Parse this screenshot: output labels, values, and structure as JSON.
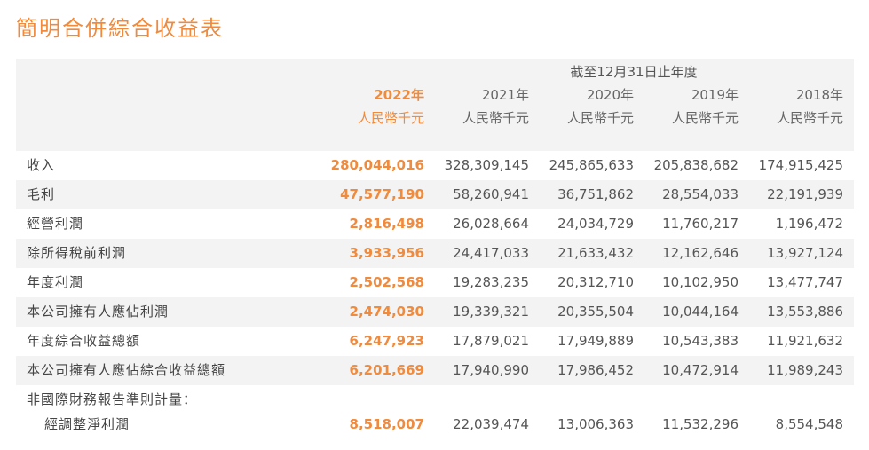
{
  "title": "簡明合併綜合收益表",
  "period_header": "截至12月31日止年度",
  "columns": [
    {
      "year": "2022年",
      "unit": "人民幣千元"
    },
    {
      "year": "2021年",
      "unit": "人民幣千元"
    },
    {
      "year": "2020年",
      "unit": "人民幣千元"
    },
    {
      "year": "2019年",
      "unit": "人民幣千元"
    },
    {
      "year": "2018年",
      "unit": "人民幣千元"
    }
  ],
  "rows": [
    {
      "label": "收入",
      "values": [
        "280,044,016",
        "328,309,145",
        "245,865,633",
        "205,838,682",
        "174,915,425"
      ]
    },
    {
      "label": "毛利",
      "values": [
        "47,577,190",
        "58,260,941",
        "36,751,862",
        "28,554,033",
        "22,191,939"
      ]
    },
    {
      "label": "經營利潤",
      "values": [
        "2,816,498",
        "26,028,664",
        "24,034,729",
        "11,760,217",
        "1,196,472"
      ]
    },
    {
      "label": "除所得稅前利潤",
      "values": [
        "3,933,956",
        "24,417,033",
        "21,633,432",
        "12,162,646",
        "13,927,124"
      ]
    },
    {
      "label": "年度利潤",
      "values": [
        "2,502,568",
        "19,283,235",
        "20,312,710",
        "10,102,950",
        "13,477,747"
      ]
    },
    {
      "label": "本公司擁有人應佔利潤",
      "values": [
        "2,474,030",
        "19,339,321",
        "20,355,504",
        "10,044,164",
        "13,553,886"
      ]
    },
    {
      "label": "年度綜合收益總額",
      "values": [
        "6,247,923",
        "17,879,021",
        "17,949,889",
        "10,543,383",
        "11,921,632"
      ]
    },
    {
      "label": "本公司擁有人應佔綜合收益總額",
      "values": [
        "6,201,669",
        "17,940,990",
        "17,986,452",
        "10,472,914",
        "11,989,243"
      ]
    },
    {
      "label": "非國際財務報告準則計量：",
      "values": [
        "",
        "",
        "",
        "",
        ""
      ]
    },
    {
      "label": "經調整淨利潤",
      "values": [
        "8,518,007",
        "22,039,474",
        "13,006,363",
        "11,532,296",
        "8,554,548"
      ]
    }
  ]
}
